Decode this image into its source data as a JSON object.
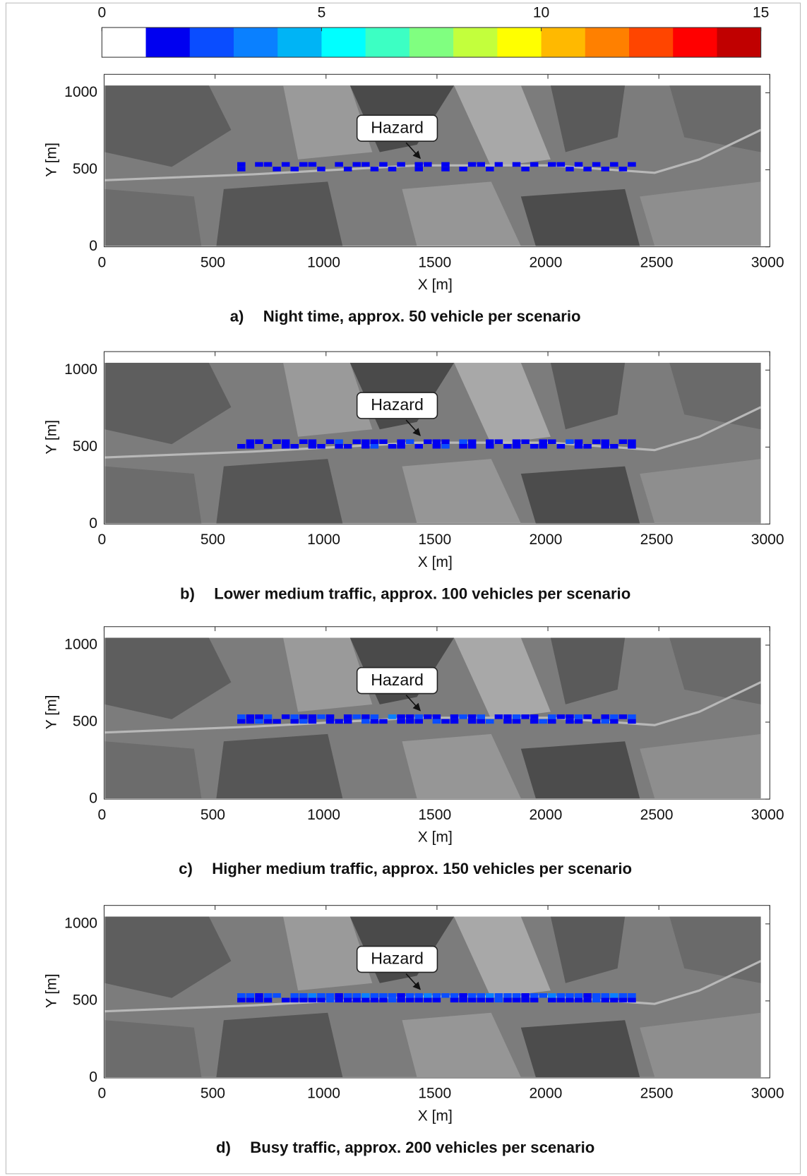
{
  "colorbar": {
    "lim": [
      0,
      15
    ],
    "ticks": [
      0,
      5,
      10,
      15
    ],
    "colors": [
      "#ffffff",
      "#0000f0",
      "#0a4dff",
      "#0a80ff",
      "#00b4f5",
      "#00ffff",
      "#3cffc3",
      "#80ff80",
      "#c3ff3c",
      "#ffff00",
      "#ffb900",
      "#ff8000",
      "#ff4500",
      "#ff0000",
      "#c00000"
    ]
  },
  "chart_data": [
    {
      "type": "heatmap",
      "label": "a)",
      "caption": "Night time, approx. 50 vehicle per scenario",
      "annotation": "Hazard",
      "xlabel": "X [m]",
      "ylabel": "Y [m]",
      "xlim": [
        0,
        3000
      ],
      "ylim": [
        0,
        1120
      ],
      "xticks": [
        0,
        500,
        1000,
        1500,
        2000,
        2500,
        3000
      ],
      "yticks": [
        0,
        500,
        1000
      ],
      "x": [
        620,
        660,
        700,
        740,
        780,
        820,
        860,
        900,
        940,
        980,
        1020,
        1060,
        1100,
        1140,
        1180,
        1220,
        1260,
        1300,
        1340,
        1380,
        1420,
        1460,
        1500,
        1540,
        1580,
        1620,
        1660,
        1700,
        1740,
        1780,
        1820,
        1860,
        1900,
        1940,
        1980,
        2020,
        2060,
        2100,
        2140,
        2180,
        2220,
        2260,
        2300,
        2340,
        2380
      ],
      "y": [
        505,
        535
      ],
      "values": [
        [
          1,
          null,
          null,
          null,
          1,
          null,
          1,
          null,
          null,
          1,
          null,
          null,
          1,
          null,
          null,
          1,
          null,
          1,
          null,
          null,
          1,
          null,
          null,
          1,
          null,
          1,
          null,
          null,
          1,
          null,
          null,
          null,
          1,
          null,
          null,
          null,
          null,
          1,
          null,
          1,
          null,
          1,
          null,
          1,
          null
        ],
        [
          1,
          null,
          1,
          1,
          null,
          1,
          null,
          1,
          1,
          null,
          null,
          1,
          null,
          1,
          1,
          null,
          1,
          null,
          1,
          null,
          1,
          1,
          null,
          1,
          null,
          null,
          1,
          1,
          null,
          1,
          null,
          1,
          null,
          1,
          null,
          1,
          1,
          null,
          1,
          null,
          1,
          null,
          1,
          null,
          1
        ]
      ]
    },
    {
      "type": "heatmap",
      "label": "b)",
      "caption": "Lower medium traffic, approx. 100 vehicles per scenario",
      "annotation": "Hazard",
      "xlabel": "X [m]",
      "ylabel": "Y [m]",
      "xlim": [
        0,
        3000
      ],
      "ylim": [
        0,
        1120
      ],
      "xticks": [
        0,
        500,
        1000,
        1500,
        2000,
        2500,
        3000
      ],
      "yticks": [
        0,
        500,
        1000
      ],
      "x": [
        620,
        660,
        700,
        740,
        780,
        820,
        860,
        900,
        940,
        980,
        1020,
        1060,
        1100,
        1140,
        1180,
        1220,
        1260,
        1300,
        1340,
        1380,
        1420,
        1460,
        1500,
        1540,
        1580,
        1620,
        1660,
        1700,
        1740,
        1780,
        1820,
        1860,
        1900,
        1940,
        1980,
        2020,
        2060,
        2100,
        2140,
        2180,
        2220,
        2260,
        2300,
        2340,
        2380
      ],
      "y": [
        505,
        535
      ],
      "values": [
        [
          1,
          1,
          null,
          1,
          null,
          1,
          1,
          null,
          1,
          1,
          null,
          1,
          1,
          null,
          1,
          2,
          null,
          1,
          1,
          null,
          1,
          null,
          1,
          2,
          null,
          1,
          1,
          null,
          1,
          null,
          1,
          1,
          null,
          1,
          1,
          null,
          1,
          null,
          1,
          1,
          null,
          1,
          1,
          null,
          1
        ],
        [
          null,
          1,
          1,
          null,
          1,
          1,
          null,
          1,
          1,
          null,
          1,
          2,
          null,
          1,
          1,
          1,
          1,
          null,
          1,
          2,
          null,
          1,
          1,
          1,
          null,
          2,
          1,
          null,
          1,
          1,
          null,
          1,
          1,
          null,
          1,
          1,
          null,
          2,
          1,
          null,
          1,
          1,
          null,
          1,
          1
        ]
      ]
    },
    {
      "type": "heatmap",
      "label": "c)",
      "caption": "Higher medium traffic, approx. 150 vehicles per scenario",
      "annotation": "Hazard",
      "xlabel": "X [m]",
      "ylabel": "Y [m]",
      "xlim": [
        0,
        3000
      ],
      "ylim": [
        0,
        1120
      ],
      "xticks": [
        0,
        500,
        1000,
        1500,
        2000,
        2500,
        3000
      ],
      "yticks": [
        0,
        500,
        1000
      ],
      "x": [
        620,
        660,
        700,
        740,
        780,
        820,
        860,
        900,
        940,
        980,
        1020,
        1060,
        1100,
        1140,
        1180,
        1220,
        1260,
        1300,
        1340,
        1380,
        1420,
        1460,
        1500,
        1540,
        1580,
        1620,
        1660,
        1700,
        1740,
        1780,
        1820,
        1860,
        1900,
        1940,
        1980,
        2020,
        2060,
        2100,
        2140,
        2180,
        2220,
        2260,
        2300,
        2340,
        2380
      ],
      "y": [
        505,
        535
      ],
      "values": [
        [
          1,
          1,
          2,
          1,
          1,
          null,
          1,
          2,
          1,
          null,
          1,
          1,
          1,
          null,
          2,
          1,
          1,
          null,
          1,
          1,
          1,
          null,
          2,
          1,
          1,
          null,
          1,
          1,
          2,
          null,
          1,
          1,
          null,
          1,
          2,
          1,
          null,
          1,
          1,
          null,
          1,
          2,
          1,
          null,
          1
        ],
        [
          2,
          1,
          1,
          2,
          null,
          1,
          2,
          1,
          1,
          2,
          1,
          null,
          1,
          2,
          1,
          2,
          null,
          3,
          1,
          1,
          2,
          1,
          1,
          null,
          1,
          2,
          1,
          2,
          null,
          1,
          1,
          2,
          1,
          1,
          null,
          2,
          1,
          1,
          2,
          1,
          null,
          1,
          2,
          1,
          2
        ]
      ]
    },
    {
      "type": "heatmap",
      "label": "d)",
      "caption": "Busy traffic, approx. 200 vehicles per scenario",
      "annotation": "Hazard",
      "xlabel": "X [m]",
      "ylabel": "Y [m]",
      "xlim": [
        0,
        3000
      ],
      "ylim": [
        0,
        1120
      ],
      "xticks": [
        0,
        500,
        1000,
        1500,
        2000,
        2500,
        3000
      ],
      "yticks": [
        0,
        500,
        1000
      ],
      "x": [
        620,
        660,
        700,
        740,
        780,
        820,
        860,
        900,
        940,
        980,
        1020,
        1060,
        1100,
        1140,
        1180,
        1220,
        1260,
        1300,
        1340,
        1380,
        1420,
        1460,
        1500,
        1540,
        1580,
        1620,
        1660,
        1700,
        1740,
        1780,
        1820,
        1860,
        1900,
        1940,
        1980,
        2020,
        2060,
        2100,
        2140,
        2180,
        2220,
        2260,
        2300,
        2340,
        2380
      ],
      "y": [
        505,
        535
      ],
      "values": [
        [
          1,
          1,
          1,
          1,
          null,
          1,
          1,
          1,
          1,
          1,
          2,
          1,
          1,
          1,
          1,
          1,
          1,
          2,
          1,
          1,
          1,
          1,
          1,
          null,
          1,
          1,
          1,
          1,
          1,
          2,
          1,
          1,
          1,
          1,
          null,
          1,
          1,
          1,
          1,
          1,
          2,
          1,
          1,
          1,
          1
        ],
        [
          2,
          2,
          1,
          2,
          2,
          null,
          2,
          2,
          3,
          2,
          2,
          1,
          2,
          2,
          3,
          2,
          2,
          2,
          1,
          2,
          2,
          3,
          2,
          2,
          2,
          1,
          2,
          2,
          3,
          2,
          2,
          2,
          1,
          2,
          2,
          3,
          2,
          2,
          2,
          1,
          2,
          2,
          3,
          2,
          2
        ]
      ]
    }
  ]
}
